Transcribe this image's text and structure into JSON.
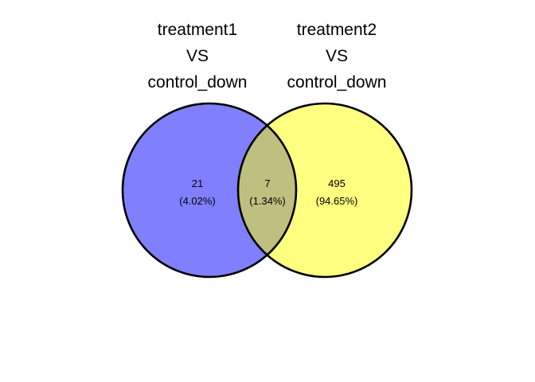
{
  "sets": [
    {
      "title_lines": [
        "treatment1",
        "VS",
        "control_down"
      ],
      "color": "#8080FF"
    },
    {
      "title_lines": [
        "treatment2",
        "VS",
        "control_down"
      ],
      "color": "#FFFF80"
    }
  ],
  "overlap_color": "#BFBF80",
  "outline_color": "#000000",
  "regions": {
    "left_only": {
      "count": "21",
      "percent": "(4.02%)"
    },
    "both": {
      "count": "7",
      "percent": "(1.34%)"
    },
    "right_only": {
      "count": "495",
      "percent": "(94.65%)"
    }
  }
}
